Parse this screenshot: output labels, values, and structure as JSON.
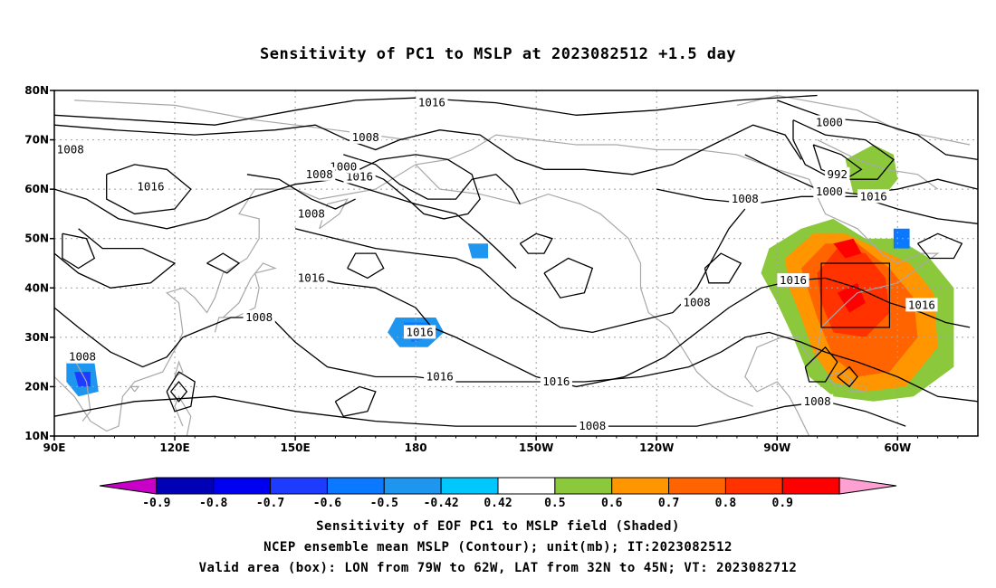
{
  "title": "Sensitivity of PC1 to MSLP at 2023082512 +1.5 day",
  "map": {
    "lon_labels": [
      "90E",
      "120E",
      "150E",
      "180",
      "150W",
      "120W",
      "90W",
      "60W"
    ],
    "lat_labels": [
      "80N",
      "70N",
      "60N",
      "50N",
      "40N",
      "30N",
      "20N",
      "10N"
    ],
    "contour_labels": [
      {
        "text": "1016",
        "lon": 184,
        "lat": 77.5
      },
      {
        "text": "1008",
        "lon": 167.5,
        "lat": 70.5
      },
      {
        "text": "1016",
        "lon": 166,
        "lat": 62.5
      },
      {
        "text": "1000",
        "lon": 162,
        "lat": 64.5
      },
      {
        "text": "1008",
        "lon": 94,
        "lat": 68
      },
      {
        "text": "1016",
        "lon": 114,
        "lat": 60.5
      },
      {
        "text": "1008",
        "lon": 156,
        "lat": 63
      },
      {
        "text": "1008",
        "lon": 154,
        "lat": 55
      },
      {
        "text": "1016",
        "lon": 154,
        "lat": 42
      },
      {
        "text": "1008",
        "lon": 141,
        "lat": 34
      },
      {
        "text": "1016",
        "lon": 181,
        "lat": 31
      },
      {
        "text": "1016",
        "lon": 186,
        "lat": 22
      },
      {
        "text": "1016",
        "lon": 215,
        "lat": 21
      },
      {
        "text": "1008",
        "lon": 97,
        "lat": 26
      },
      {
        "text": "1008",
        "lon": 224,
        "lat": 12
      },
      {
        "text": "1000",
        "lon": 283,
        "lat": 73.5
      },
      {
        "text": "992",
        "lon": 285,
        "lat": 63
      },
      {
        "text": "1000",
        "lon": 283,
        "lat": 59.5
      },
      {
        "text": "1008",
        "lon": 262,
        "lat": 58
      },
      {
        "text": "1016",
        "lon": 294,
        "lat": 58.5
      },
      {
        "text": "1016",
        "lon": 274,
        "lat": 41.5
      },
      {
        "text": "1008",
        "lon": 250,
        "lat": 37
      },
      {
        "text": "1016",
        "lon": 306,
        "lat": 36.5
      },
      {
        "text": "1008",
        "lon": 280,
        "lat": 17
      }
    ]
  },
  "sensitive_area_box": {
    "lon_west": 281,
    "lon_east": 298,
    "lat_south": 32,
    "lat_north": 45
  },
  "colorbar": {
    "levels": [
      "-0.9",
      "-0.8",
      "-0.7",
      "-0.6",
      "-0.5",
      "-0.42",
      "0.42",
      "0.5",
      "0.6",
      "0.7",
      "0.8",
      "0.9"
    ],
    "colors": [
      "#c800c8",
      "#0000b4",
      "#0000f0",
      "#1e3cff",
      "#0a78ff",
      "#1e96f0",
      "#00c8ff",
      "#ffffff",
      "#8cc83c",
      "#ff9600",
      "#ff6400",
      "#ff3200",
      "#ff0000",
      "#ffa0d2"
    ]
  },
  "captions": [
    "Sensitivity of EOF PC1 to MSLP field (Shaded)",
    "NCEP ensemble mean MSLP (Contour); unit(mb); IT:2023082512",
    "Valid area (box): LON from 79W to 62W, LAT from 32N to 45N; VT: 2023082712"
  ]
}
